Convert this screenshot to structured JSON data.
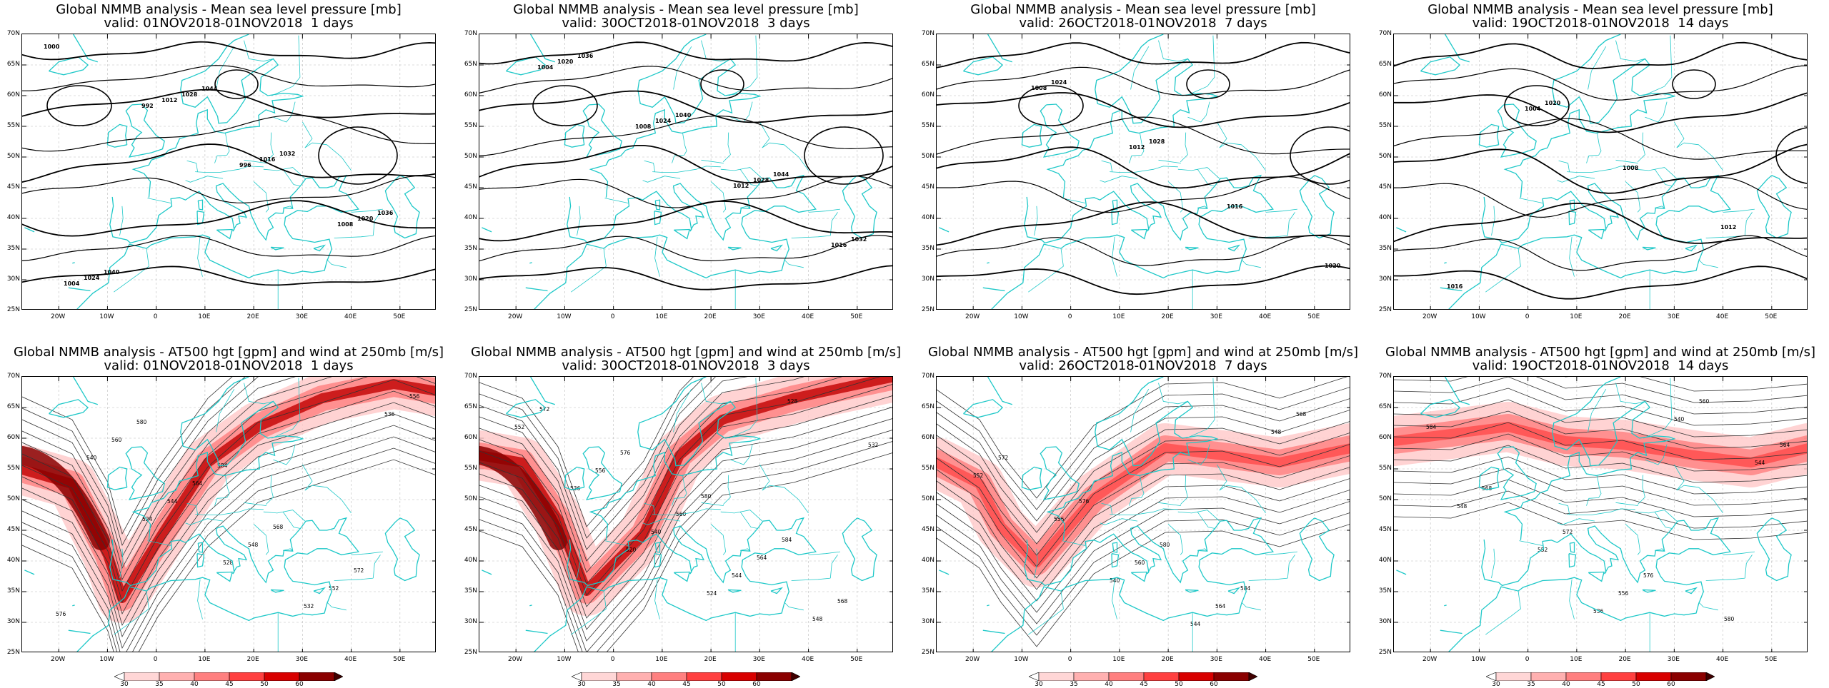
{
  "colors": {
    "coastline": "#1ec8c8",
    "contour": "#000000",
    "jet_light": "#ffc8c8",
    "jet_dark": "#8a0000"
  },
  "mslp_title": "Global NMMB analysis - Mean sea level pressure [mb]",
  "z500_title": "Global NMMB analysis - AT500 hgt [gpm] and wind at 250mb [m/s]",
  "lat_labels": [
    "70N",
    "65N",
    "60N",
    "55N",
    "50N",
    "45N",
    "40N",
    "35N",
    "30N",
    "25N"
  ],
  "lon_labels": [
    "20W",
    "10W",
    "0",
    "10E",
    "20E",
    "30E",
    "40E",
    "50E"
  ],
  "colorbar_labels": [
    "30",
    "35",
    "40",
    "45",
    "50",
    "60"
  ],
  "panels": [
    {
      "row": "mslp",
      "valid": "valid: 01NOV2018-01NOV2018  1 days",
      "contour_labels": [
        "1000",
        "992",
        "996",
        "1008",
        "1004",
        "1012",
        "1016",
        "1020",
        "1024",
        "1028",
        "1032",
        "1036",
        "1040",
        "1044"
      ]
    },
    {
      "row": "mslp",
      "valid": "valid: 30OCT2018-01NOV2018  3 days",
      "contour_labels": [
        "1004",
        "1008",
        "1012",
        "1016",
        "1020",
        "1024",
        "1028",
        "1032",
        "1036",
        "1040",
        "1044"
      ]
    },
    {
      "row": "mslp",
      "valid": "valid: 26OCT2018-01NOV2018  7 days",
      "contour_labels": [
        "1008",
        "1012",
        "1016",
        "1020",
        "1024",
        "1028"
      ]
    },
    {
      "row": "mslp",
      "valid": "valid: 19OCT2018-01NOV2018  14 days",
      "contour_labels": [
        "1004",
        "1008",
        "1012",
        "1016",
        "1020"
      ]
    },
    {
      "row": "z500",
      "valid": "valid: 01NOV2018-01NOV2018  1 days",
      "contour_labels": [
        "524",
        "528",
        "532",
        "536",
        "540",
        "544",
        "548",
        "552",
        "556",
        "560",
        "564",
        "568",
        "572",
        "576",
        "580",
        "584"
      ]
    },
    {
      "row": "z500",
      "valid": "valid: 30OCT2018-01NOV2018  3 days",
      "contour_labels": [
        "520",
        "524",
        "528",
        "532",
        "536",
        "540",
        "544",
        "548",
        "552",
        "556",
        "560",
        "564",
        "568",
        "572",
        "576",
        "580",
        "584"
      ]
    },
    {
      "row": "z500",
      "valid": "valid: 26OCT2018-01NOV2018  7 days",
      "contour_labels": [
        "540",
        "544",
        "548",
        "552",
        "556",
        "560",
        "564",
        "568",
        "572",
        "576",
        "580",
        "584"
      ]
    },
    {
      "row": "z500",
      "valid": "valid: 19OCT2018-01NOV2018  14 days",
      "contour_labels": [
        "536",
        "540",
        "544",
        "548",
        "552",
        "556",
        "560",
        "564",
        "568",
        "572",
        "576",
        "580",
        "584"
      ]
    }
  ]
}
